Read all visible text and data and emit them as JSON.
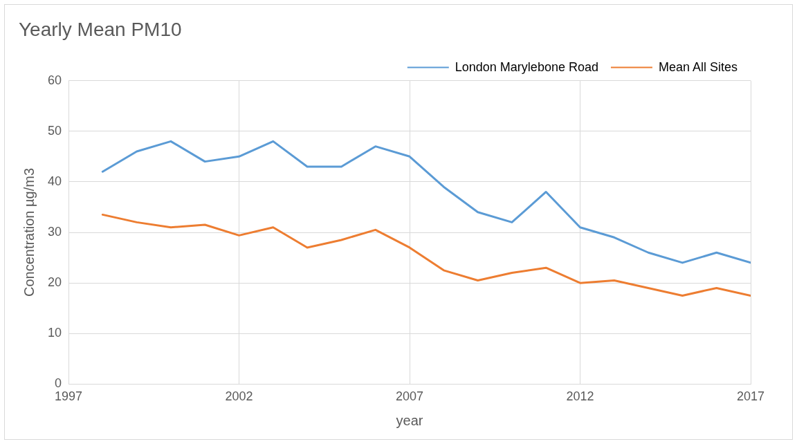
{
  "chart_data": {
    "type": "line",
    "title": "Yearly Mean PM10",
    "xlabel": "year",
    "ylabel": "Concentration µg/m3",
    "x": [
      1998,
      1999,
      2000,
      2001,
      2002,
      2003,
      2004,
      2005,
      2006,
      2007,
      2008,
      2009,
      2010,
      2011,
      2012,
      2013,
      2014,
      2015,
      2016,
      2017
    ],
    "series": [
      {
        "name": "London Marylebone Road",
        "color": "#5b9bd5",
        "values": [
          42,
          46,
          48,
          44,
          45,
          48,
          43,
          43,
          47,
          45,
          39,
          34,
          32,
          38,
          31,
          29,
          26,
          24,
          26,
          24
        ]
      },
      {
        "name": "Mean All Sites",
        "color": "#ed7d31",
        "values": [
          33.5,
          32,
          31,
          31.5,
          29.4,
          31,
          27,
          28.5,
          30.5,
          27,
          22.5,
          20.5,
          22,
          23,
          20,
          20.5,
          19,
          17.5,
          19,
          17.5
        ]
      }
    ],
    "xlim": [
      1997,
      2017
    ],
    "xticks": [
      1997,
      2002,
      2007,
      2012,
      2017
    ],
    "ylim": [
      0,
      60
    ],
    "yticks": [
      0,
      10,
      20,
      30,
      40,
      50,
      60
    ],
    "grid": true,
    "legend": "top right",
    "marker": "none",
    "line_style": "solid"
  }
}
